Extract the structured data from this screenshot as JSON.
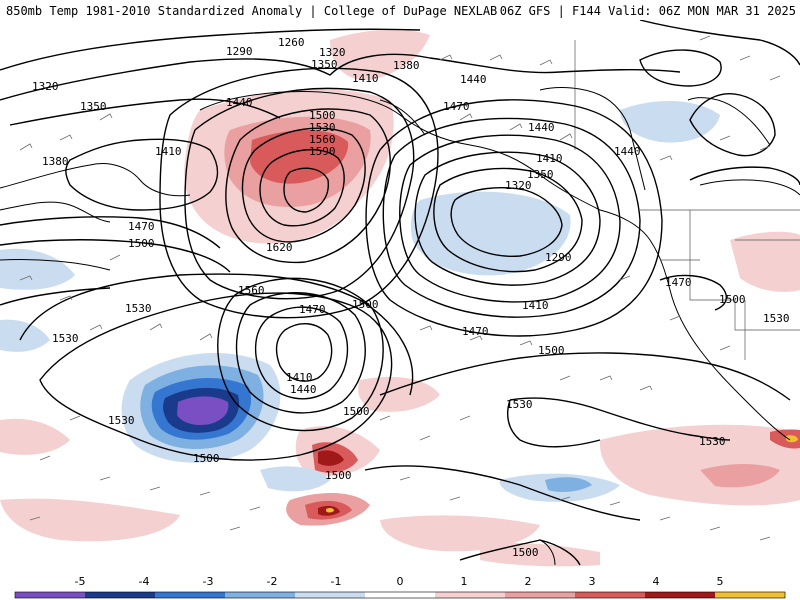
{
  "header": {
    "left_title": "850mb Temp 1981-2010 Standardized Anomaly | College of DuPage NEXLAB",
    "right_title": "06Z GFS | F144 Valid: 06Z MON MAR 31 2025"
  },
  "colors": {
    "contour": "#000000",
    "coast": "#000000",
    "border": "#555555",
    "barb": "#6a6a6a",
    "anom_neg5": "#7b4fc4",
    "anom_neg4": "#1a3a8c",
    "anom_neg3": "#3577d0",
    "anom_neg2": "#7fb0e2",
    "anom_neg1": "#cadcf0",
    "anom_pos1": "#f5d0d0",
    "anom_pos2": "#eaa0a0",
    "anom_pos3": "#d85a5a",
    "anom_pos4": "#a01818",
    "anom_pos5": "#f0c030"
  },
  "height_labels": [
    "1320",
    "1350",
    "1380",
    "1410",
    "1440",
    "1470",
    "1500",
    "1530",
    "1560",
    "1590",
    "1620",
    "1290",
    "1260"
  ],
  "colorbar": {
    "ticks": [
      "-5",
      "-4",
      "-3",
      "-2",
      "-1",
      "0",
      "1",
      "2",
      "3",
      "4",
      "5"
    ],
    "colors": [
      "#7b4fc4",
      "#1a3a8c",
      "#3577d0",
      "#7fb0e2",
      "#cadcf0",
      "#ffffff",
      "#f5d0d0",
      "#eaa0a0",
      "#d85a5a",
      "#a01818",
      "#f0c030"
    ]
  }
}
